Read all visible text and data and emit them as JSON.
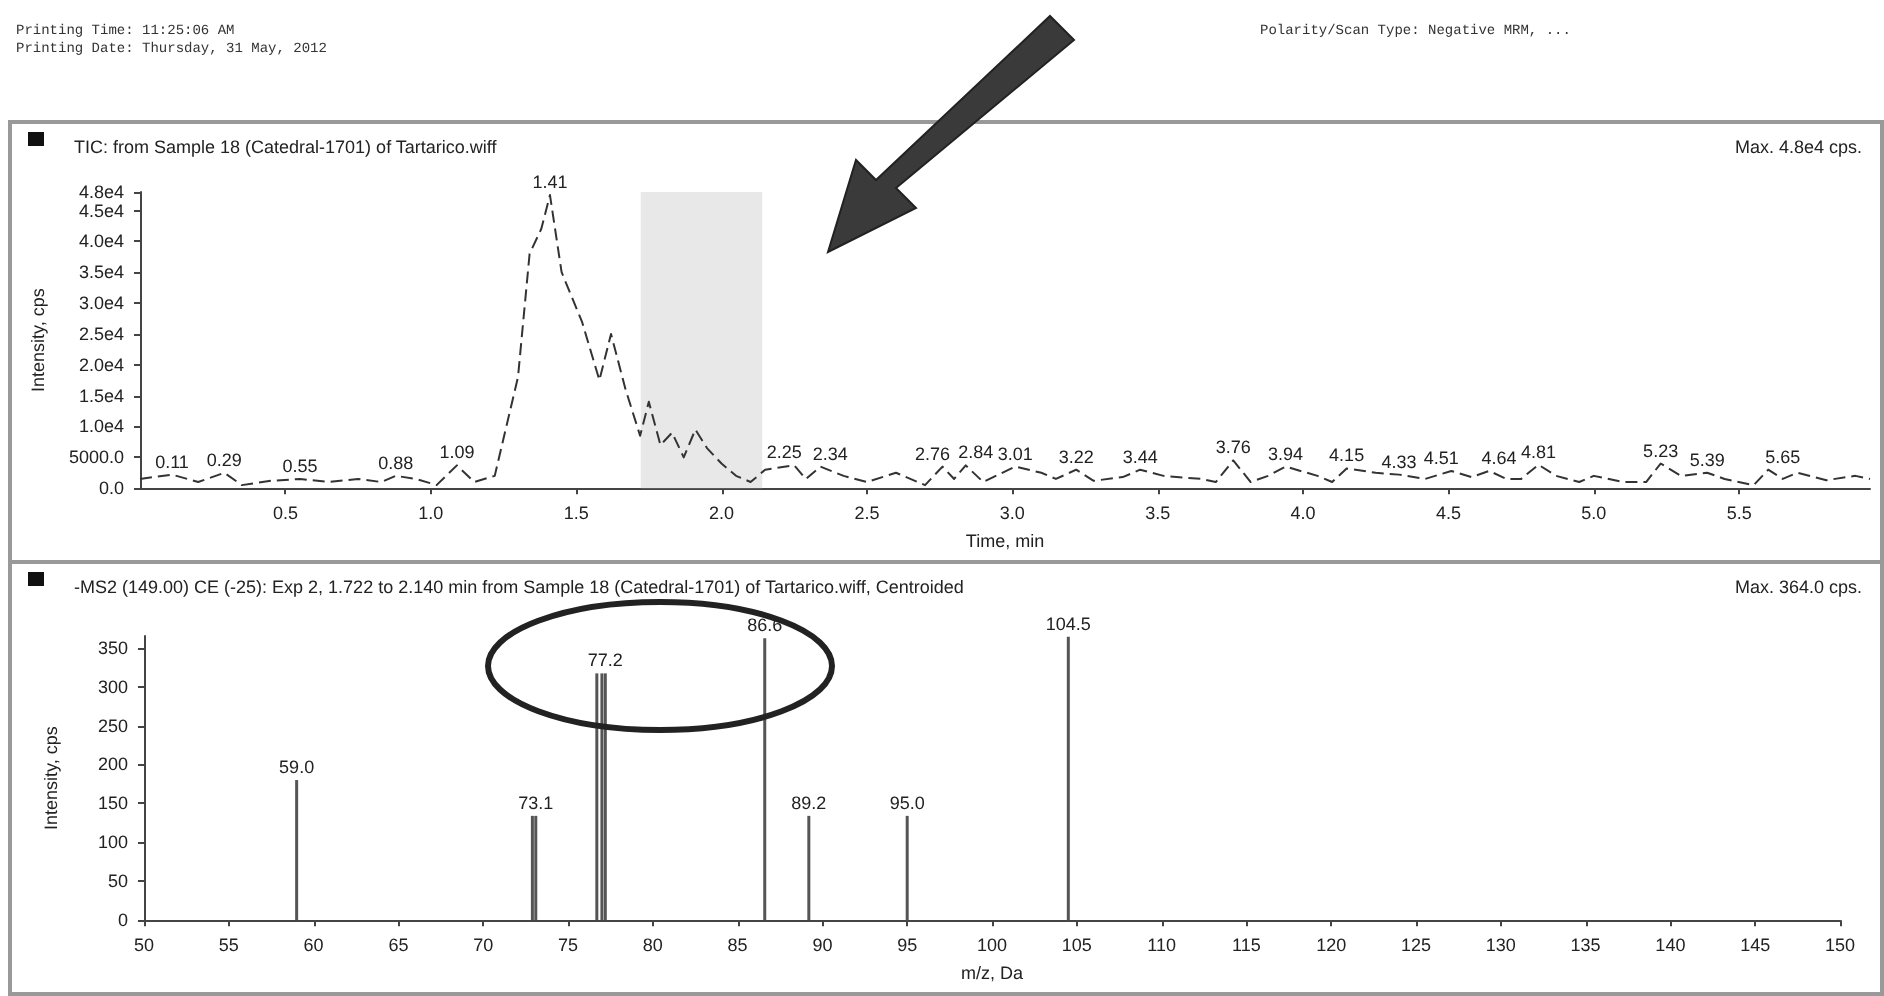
{
  "chart_data": [
    {
      "type": "line",
      "title": "TIC: from Sample 18 (Catedral-1701) of Tartarico.wiff",
      "subtitle": "Max. 4.8e4 cps.",
      "xlabel": "Time, min",
      "ylabel": "Intensity, cps",
      "annotations": [
        "Printing Time: 11:25:06 AM",
        "Printing Date: Thursday, 31 May, 2012",
        "Polarity/Scan Type: Negative MRM, ...",
        {
          "text": "0.11",
          "x": 0.11,
          "y": 2200
        },
        {
          "text": "0.29",
          "x": 0.29,
          "y": 2500
        },
        {
          "text": "0.55",
          "x": 0.55,
          "y": 1500
        },
        {
          "text": "0.88",
          "x": 0.88,
          "y": 2000
        },
        {
          "text": "1.09",
          "x": 1.09,
          "y": 3700
        },
        {
          "text": "1.41",
          "x": 1.41,
          "y": 47500
        },
        {
          "text": "2.25",
          "x": 2.25,
          "y": 3700
        },
        {
          "text": "2.34",
          "x": 2.34,
          "y": 3500
        },
        {
          "text": "2.76",
          "x": 2.76,
          "y": 3500
        },
        {
          "text": "2.84",
          "x": 2.84,
          "y": 3700
        },
        {
          "text": "3.01",
          "x": 3.01,
          "y": 3500
        },
        {
          "text": "3.22",
          "x": 3.22,
          "y": 3000
        },
        {
          "text": "3.44",
          "x": 3.44,
          "y": 3000
        },
        {
          "text": "3.76",
          "x": 3.76,
          "y": 4500
        },
        {
          "text": "3.94",
          "x": 3.94,
          "y": 3500
        },
        {
          "text": "4.15",
          "x": 4.15,
          "y": 3200
        },
        {
          "text": "4.33",
          "x": 4.33,
          "y": 2200
        },
        {
          "text": "4.51",
          "x": 4.51,
          "y": 2800
        },
        {
          "text": "4.64",
          "x": 4.64,
          "y": 2800
        },
        {
          "text": "4.81",
          "x": 4.81,
          "y": 3800
        },
        {
          "text": "5.23",
          "x": 5.23,
          "y": 4000
        },
        {
          "text": "5.39",
          "x": 5.39,
          "y": 2500
        },
        {
          "text": "5.65",
          "x": 5.65,
          "y": 3000
        }
      ],
      "x": [
        0.0,
        0.11,
        0.2,
        0.29,
        0.35,
        0.45,
        0.55,
        0.65,
        0.75,
        0.83,
        0.88,
        0.95,
        1.02,
        1.09,
        1.15,
        1.22,
        1.3,
        1.34,
        1.38,
        1.41,
        1.45,
        1.52,
        1.58,
        1.62,
        1.67,
        1.72,
        1.75,
        1.79,
        1.83,
        1.87,
        1.91,
        1.95,
        2.0,
        2.05,
        2.1,
        2.15,
        2.25,
        2.29,
        2.34,
        2.42,
        2.5,
        2.6,
        2.7,
        2.76,
        2.8,
        2.84,
        2.9,
        3.01,
        3.1,
        3.15,
        3.22,
        3.28,
        3.38,
        3.44,
        3.52,
        3.65,
        3.7,
        3.76,
        3.82,
        3.88,
        3.94,
        4.05,
        4.1,
        4.15,
        4.25,
        4.33,
        4.42,
        4.51,
        4.58,
        4.64,
        4.7,
        4.75,
        4.81,
        4.87,
        4.95,
        5.0,
        5.1,
        5.18,
        5.23,
        5.3,
        5.39,
        5.45,
        5.55,
        5.6,
        5.65,
        5.7,
        5.8,
        5.9,
        5.95
      ],
      "series": [
        {
          "color": "#333333",
          "values": [
            1500,
            2200,
            1000,
            2500,
            500,
            1200,
            1500,
            1000,
            1500,
            1000,
            2000,
            1500,
            500,
            3700,
            1000,
            2000,
            18000,
            38000,
            42000,
            47500,
            35000,
            27000,
            17500,
            25000,
            16000,
            8500,
            14000,
            7000,
            9000,
            5000,
            9500,
            6500,
            4000,
            2000,
            1000,
            3000,
            3700,
            1500,
            3500,
            2000,
            1000,
            2500,
            500,
            3500,
            1500,
            3700,
            1000,
            3500,
            2500,
            1500,
            3000,
            1200,
            1800,
            3000,
            2000,
            1500,
            1000,
            4500,
            1000,
            2000,
            3500,
            2000,
            1000,
            3200,
            2500,
            2200,
            1500,
            2800,
            1800,
            2800,
            1500,
            1500,
            3800,
            2000,
            1000,
            2000,
            1000,
            1000,
            4000,
            2000,
            2500,
            1500,
            500,
            3000,
            1500,
            2500,
            1300,
            2000,
            1500
          ]
        }
      ],
      "bands": [
        {
          "axis": "x",
          "from": 1.722,
          "to": 2.14,
          "color": "#d9d9d9"
        }
      ],
      "xlim": [
        0,
        5.95
      ],
      "xticks": [
        0.5,
        {
          "value": 1,
          "label": "1.0"
        },
        1.5,
        {
          "value": 2,
          "label": "2.0"
        },
        2.5,
        {
          "value": 3,
          "label": "3.0"
        },
        3.5,
        {
          "value": 4,
          "label": "4.0"
        },
        4.5,
        {
          "value": 5,
          "label": "5.0"
        },
        5.5
      ],
      "ylim": [
        0,
        48000
      ],
      "yticks": [
        {
          "value": 0,
          "label": "0.0"
        },
        {
          "value": 5000,
          "label": "5000.0"
        },
        {
          "value": 10000,
          "label": "1.0e4"
        },
        {
          "value": 15000,
          "label": "1.5e4"
        },
        {
          "value": 20000,
          "label": "2.0e4"
        },
        {
          "value": 25000,
          "label": "2.5e4"
        },
        {
          "value": 30000,
          "label": "3.0e4"
        },
        {
          "value": 35000,
          "label": "3.5e4"
        },
        {
          "value": 40000,
          "label": "4.0e4"
        },
        {
          "value": 45000,
          "label": "4.5e4"
        },
        {
          "value": 48000,
          "label": "4.8e4"
        }
      ],
      "line_style": "dashed",
      "grid": false
    },
    {
      "type": "bar",
      "title": "-MS2 (149.00) CE (-25): Exp 2, 1.722 to 2.140 min from Sample 18 (Catedral-1701) of Tartarico.wiff, Centroided",
      "subtitle": "Max. 364.0 cps.",
      "xlabel": "m/z, Da",
      "ylabel": "Intensity, cps",
      "annotations": [
        {
          "text": "59.0",
          "x": 59.0,
          "y": 180
        },
        {
          "text": "73.1",
          "x": 73.1,
          "y": 134
        },
        {
          "text": "77.2",
          "x": 77.2,
          "y": 317
        },
        {
          "text": "86.6",
          "x": 86.6,
          "y": 362
        },
        {
          "text": "89.2",
          "x": 89.2,
          "y": 134
        },
        {
          "text": "95.0",
          "x": 95.0,
          "y": 134
        },
        {
          "text": "104.5",
          "x": 104.5,
          "y": 364
        }
      ],
      "x": [
        59.0,
        72.9,
        73.1,
        76.7,
        77.0,
        77.2,
        86.6,
        89.2,
        95.0,
        104.5
      ],
      "series": [
        {
          "color": "#555555",
          "values": [
            180,
            134,
            134,
            317,
            317,
            317,
            362,
            134,
            134,
            364
          ]
        }
      ],
      "xlim": [
        50,
        150
      ],
      "xticks": [
        50,
        55,
        60,
        65,
        70,
        75,
        80,
        85,
        90,
        95,
        100,
        105,
        110,
        115,
        120,
        125,
        130,
        135,
        140,
        145,
        150
      ],
      "ylim": [
        0,
        365
      ],
      "yticks": [
        0,
        50,
        100,
        150,
        200,
        250,
        300,
        350
      ],
      "grid": false
    }
  ]
}
